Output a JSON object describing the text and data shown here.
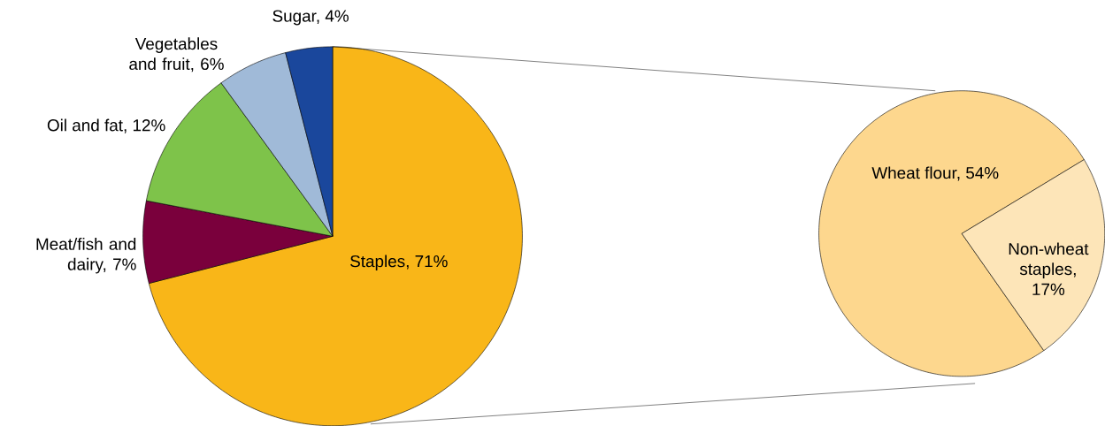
{
  "chart_data": [
    {
      "type": "pie",
      "categories": [
        "Staples, 71%",
        "Meat/fish and dairy, 7%",
        "Oil and fat, 12%",
        "Vegetables and fruit, 6%",
        "Sugar, 4%"
      ],
      "values": [
        71,
        7,
        12,
        6,
        4
      ],
      "colors": [
        "#f9b618",
        "#7a003c",
        "#7ec34a",
        "#a0bad8",
        "#1a479c"
      ]
    },
    {
      "type": "pie",
      "categories": [
        "Wheat flour, 54%",
        "Non-wheat staples, 17%"
      ],
      "values": [
        54,
        17
      ],
      "colors": [
        "#fdd78e",
        "#fde5b8"
      ]
    }
  ]
}
